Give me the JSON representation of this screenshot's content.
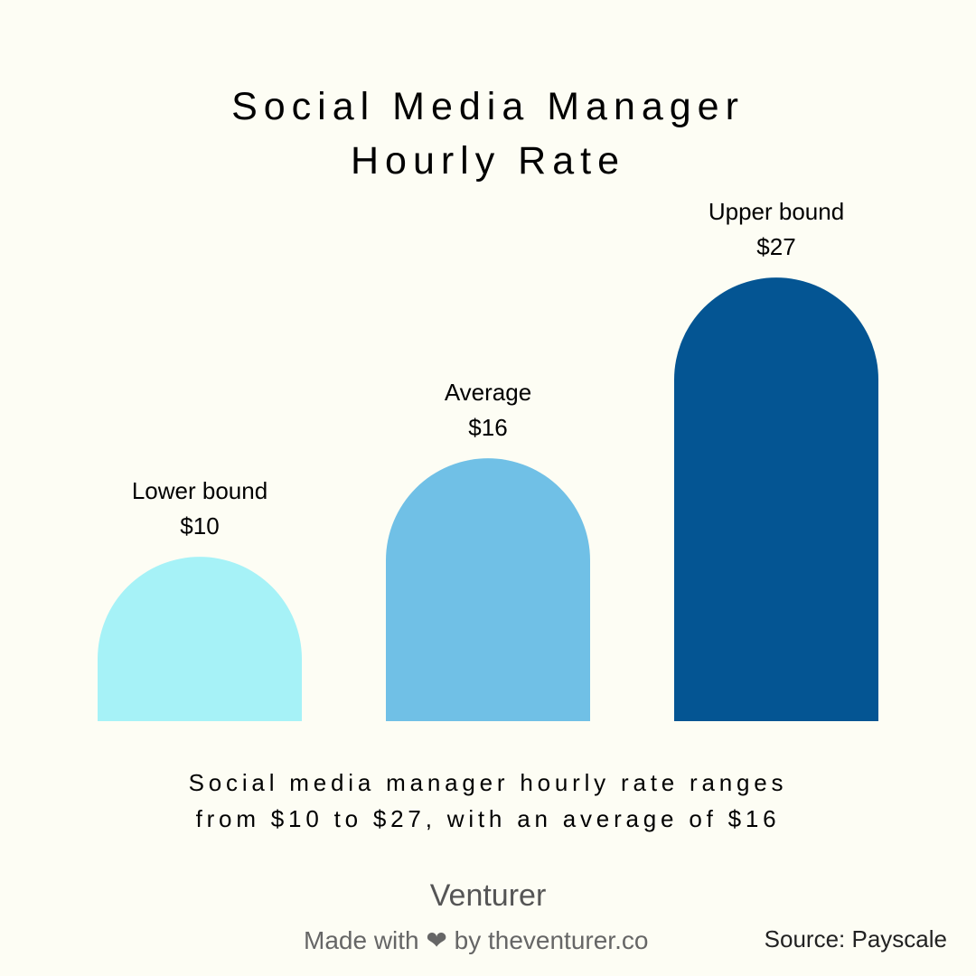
{
  "chart_data": {
    "type": "bar",
    "title": "Social Media Manager Hourly Rate",
    "title_lines": [
      "Social Media Manager",
      "Hourly Rate"
    ],
    "categories": [
      "Lower bound",
      "Average",
      "Upper bound"
    ],
    "values": [
      10,
      16,
      27
    ],
    "value_labels": [
      "$10",
      "$16",
      "$27"
    ],
    "colors": [
      "#a6f2f7",
      "#70c0e6",
      "#045593"
    ],
    "ylim": [
      0,
      33
    ],
    "grid": false,
    "bar_shape": "rounded-top"
  },
  "caption": {
    "line1": "Social media manager hourly rate ranges",
    "line2": "from $10 to $27, with an average of $16"
  },
  "footer": {
    "brand": "Venturer",
    "made_with": "Made with ❤ by theventurer.co",
    "source": "Source: Payscale"
  }
}
